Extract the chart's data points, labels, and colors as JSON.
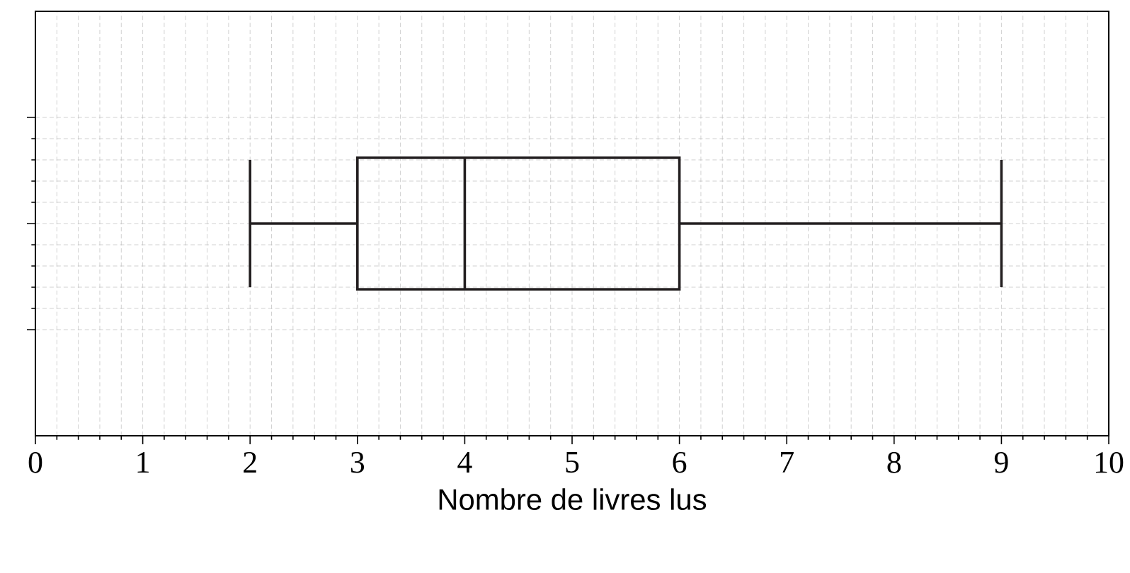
{
  "chart_data": {
    "type": "box",
    "orientation": "horizontal",
    "categories": [
      null
    ],
    "boxes": [
      {
        "low": 2,
        "q1": 3,
        "median": 4,
        "q3": 6,
        "high": 9
      }
    ],
    "xlabel": "Nombre de livres lus",
    "xlim": [
      0,
      10
    ],
    "xticks": [
      0,
      1,
      2,
      3,
      4,
      5,
      6,
      7,
      8,
      9,
      10
    ],
    "grid": true,
    "tick_labels": "x",
    "color": "#231f20"
  }
}
